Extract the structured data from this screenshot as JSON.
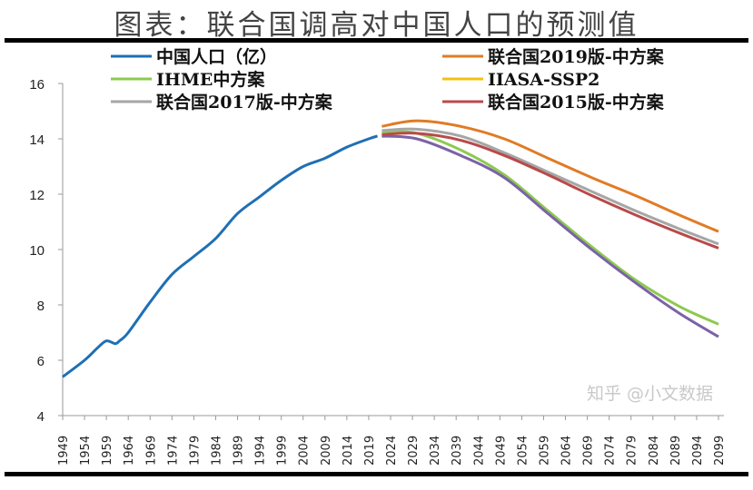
{
  "chart_data": {
    "type": "line",
    "title": "图表：联合国调高对中国人口的预测值",
    "xlim": [
      1949,
      2099
    ],
    "ylim": [
      4,
      16
    ],
    "yticks": [
      4,
      6,
      8,
      10,
      12,
      14,
      16
    ],
    "xticks": [
      1949,
      1954,
      1959,
      1964,
      1969,
      1974,
      1979,
      1984,
      1989,
      1994,
      1999,
      2004,
      2009,
      2014,
      2019,
      2024,
      2029,
      2034,
      2039,
      2044,
      2049,
      2054,
      2059,
      2064,
      2069,
      2074,
      2079,
      2084,
      2089,
      2094,
      2099
    ],
    "grid": false,
    "legend_position": "top",
    "series": [
      {
        "name": "中国人口（亿）",
        "color": "#1f6fb4",
        "x": [
          1949,
          1954,
          1957,
          1959,
          1961,
          1962,
          1964,
          1969,
          1974,
          1979,
          1984,
          1989,
          1994,
          1999,
          2004,
          2009,
          2014,
          2019,
          2021
        ],
        "y": [
          5.4,
          6.0,
          6.45,
          6.7,
          6.6,
          6.7,
          7.0,
          8.1,
          9.1,
          9.75,
          10.4,
          11.3,
          11.9,
          12.5,
          13.0,
          13.3,
          13.7,
          14.0,
          14.1
        ]
      },
      {
        "name": "联合国2019版-中方案",
        "color": "#e07b25",
        "x": [
          2022,
          2030,
          2040,
          2050,
          2060,
          2070,
          2080,
          2090,
          2099
        ],
        "y": [
          14.45,
          14.65,
          14.45,
          14.0,
          13.3,
          12.6,
          11.95,
          11.25,
          10.65
        ]
      },
      {
        "name": "IHME中方案",
        "color": "#8dc94f",
        "x": [
          2022,
          2030,
          2040,
          2050,
          2060,
          2070,
          2080,
          2090,
          2099
        ],
        "y": [
          14.25,
          14.2,
          13.6,
          12.7,
          11.4,
          10.1,
          8.9,
          7.95,
          7.3
        ]
      },
      {
        "name": "IIASA-SSP2",
        "color": "#f5c00f",
        "line_color": "#7b62a8",
        "x": [
          2022,
          2030,
          2040,
          2050,
          2060,
          2070,
          2080,
          2090,
          2099
        ],
        "y": [
          14.1,
          14.0,
          13.4,
          12.6,
          11.3,
          10.0,
          8.8,
          7.7,
          6.85
        ]
      },
      {
        "name": "联合国2017版-中方案",
        "color": "#a6a6a6",
        "x": [
          2022,
          2030,
          2040,
          2050,
          2060,
          2070,
          2080,
          2090,
          2099
        ],
        "y": [
          14.3,
          14.35,
          14.1,
          13.5,
          12.8,
          12.1,
          11.4,
          10.75,
          10.2
        ]
      },
      {
        "name": "联合国2015版-中方案",
        "color": "#b84a4a",
        "x": [
          2022,
          2030,
          2040,
          2050,
          2060,
          2070,
          2080,
          2090,
          2099
        ],
        "y": [
          14.15,
          14.2,
          13.95,
          13.4,
          12.7,
          11.95,
          11.25,
          10.6,
          10.05
        ]
      }
    ]
  },
  "watermark": "知乎 @小文数据"
}
